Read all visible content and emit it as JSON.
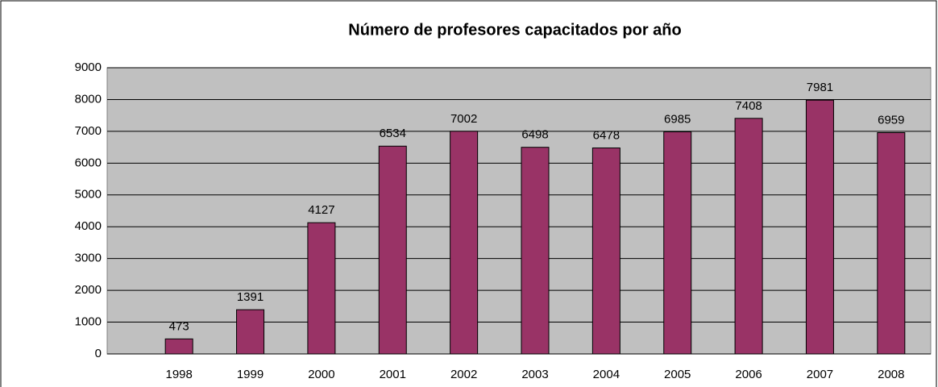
{
  "chart_data": {
    "type": "bar",
    "title": "Número de profesores capacitados por año",
    "categories": [
      "1998",
      "1999",
      "2000",
      "2001",
      "2002",
      "2003",
      "2004",
      "2005",
      "2006",
      "2007",
      "2008"
    ],
    "values": [
      473,
      1391,
      4127,
      6534,
      7002,
      6498,
      6478,
      6985,
      7408,
      7981,
      6959
    ],
    "color": "#993366",
    "ylim": [
      0,
      9000
    ],
    "yticks": [
      0,
      1000,
      2000,
      3000,
      4000,
      5000,
      6000,
      7000,
      8000,
      9000
    ],
    "grid": true
  }
}
